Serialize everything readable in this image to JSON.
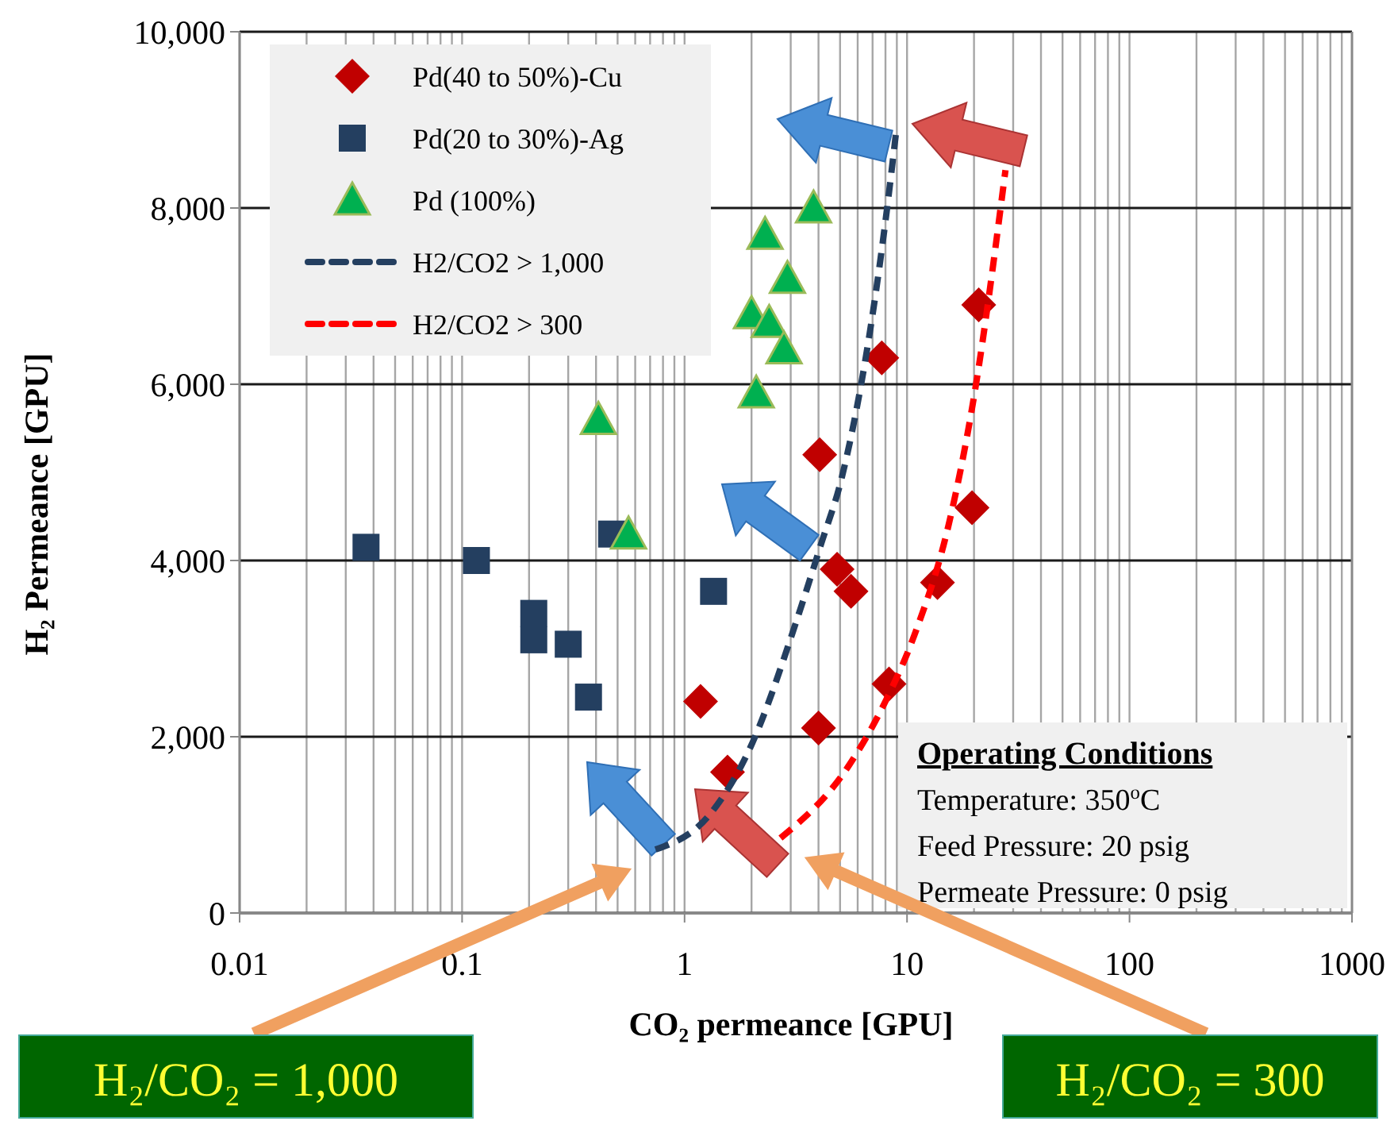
{
  "chart_data": {
    "type": "scatter",
    "xlabel": "CO₂ permeance [GPU]",
    "ylabel": "H₂ Permeance [GPU]",
    "log": "x",
    "xlim": [
      0.01,
      1000
    ],
    "xticks": [
      0.01,
      0.1,
      1,
      10,
      100,
      1000
    ],
    "ylim": [
      0,
      10000
    ],
    "yticks": [
      0,
      {
        "value": 2000,
        "label": "2,000"
      },
      {
        "value": 4000,
        "label": "4,000"
      },
      {
        "value": 6000,
        "label": "6,000"
      },
      {
        "value": 8000,
        "label": "8,000"
      },
      {
        "value": 10000,
        "label": "10,000"
      }
    ],
    "grid": true,
    "legend": "top left",
    "series": [
      {
        "name": "Pd(40 to 50%)-Cu",
        "marker": "diamond",
        "color": "#c00000",
        "x": [
          21,
          7.7,
          4.05,
          19.6,
          4.85,
          5.6,
          13.7,
          8.3,
          1.18,
          4.0,
          1.56
        ],
        "values": [
          6900,
          6300,
          5200,
          4600,
          3900,
          3650,
          3750,
          2600,
          2400,
          2100,
          1600
        ]
      },
      {
        "name": "Pd(20 to 30%)-Ag",
        "marker": "square",
        "color": "#243f60",
        "x": [
          0.037,
          0.116,
          0.21,
          0.21,
          0.3,
          0.37,
          0.47,
          1.35
        ],
        "values": [
          4150,
          4000,
          3400,
          3100,
          3050,
          2450,
          4300,
          3650
        ]
      },
      {
        "name": "Pd (100%)",
        "marker": "triangle",
        "color": "#00b050",
        "x": [
          3.8,
          2.3,
          2.9,
          2.0,
          2.4,
          2.8,
          2.1,
          0.41,
          0.56
        ],
        "values": [
          8000,
          7700,
          7200,
          6800,
          6700,
          6400,
          5900,
          5600,
          4300
        ]
      },
      {
        "name": "H2/CO2 > 1,000",
        "type": "line",
        "marker": "none",
        "line_style": "dashed",
        "color": "#243f60",
        "x": [
          0.74,
          1.3,
          1.96,
          3.2,
          4.1,
          5.1,
          8.1,
          8.9
        ],
        "values": [
          720,
          1120,
          1860,
          3330,
          4180,
          4950,
          7960,
          8830
        ]
      },
      {
        "name": "H2/CO2 > 300",
        "type": "line",
        "marker": "none",
        "line_style": "dashed",
        "color": "#ff0000",
        "x": [
          2.7,
          5.5,
          8.1,
          11,
          15.4,
          20,
          27.7
        ],
        "values": [
          850,
          1680,
          2430,
          3210,
          4410,
          5860,
          8430
        ]
      }
    ],
    "annotations": [
      "Operating Conditions",
      "Temperature:  350$^{o}$C",
      "Feed Pressure:  20 psig",
      "Permeate Pressure:  0 psig",
      "H₂/CO₂ = 1,000",
      "H₂/CO₂ = 300"
    ]
  }
}
